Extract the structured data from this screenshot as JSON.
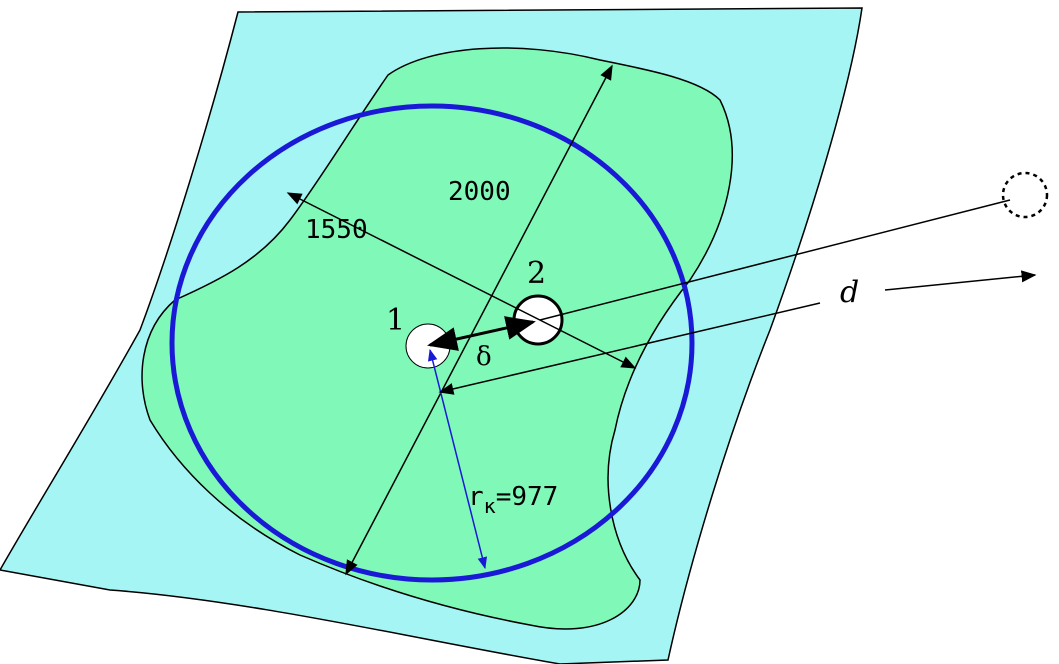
{
  "labels": {
    "diameter": "2000",
    "inner": "1550",
    "well_1": "1",
    "well_2": "2",
    "delta": "δ",
    "distance": "d",
    "radius": {
      "symbol": "r",
      "subscript": "к",
      "value": "=977"
    }
  }
}
